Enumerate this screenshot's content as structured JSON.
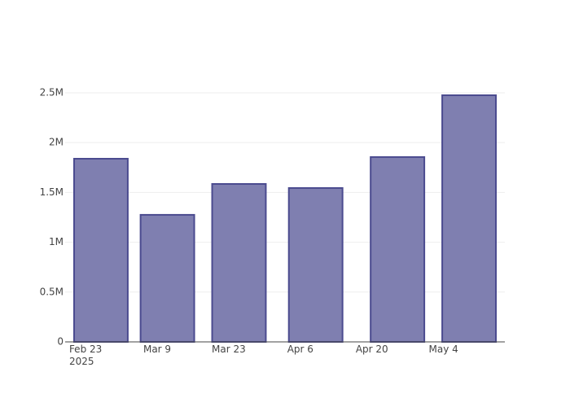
{
  "chart_data": {
    "type": "bar",
    "x": [
      "2025-02-26",
      "2025-03-11",
      "2025-03-25",
      "2025-04-09",
      "2025-04-25",
      "2025-05-09"
    ],
    "values": [
      1838000,
      1275000,
      1585000,
      1544000,
      1855000,
      2475000
    ],
    "color": "#7f7fb0",
    "edge_color": "#4b4b8f",
    "xlim": [
      "2025-02-19",
      "2025-05-16"
    ],
    "xticks": [
      {
        "value": "2025-02-23",
        "label": "Feb 23\n2025"
      },
      {
        "value": "2025-03-09",
        "label": "Mar 9"
      },
      {
        "value": "2025-03-23",
        "label": "Mar 23"
      },
      {
        "value": "2025-04-06",
        "label": "Apr 6"
      },
      {
        "value": "2025-04-20",
        "label": "Apr 20"
      },
      {
        "value": "2025-05-04",
        "label": "May 4"
      }
    ],
    "ylim": [
      0,
      2614000
    ],
    "yticks": [
      0,
      {
        "value": 500000,
        "label": "0.5M"
      },
      {
        "value": 1000000,
        "label": "1M"
      },
      {
        "value": 1500000,
        "label": "1.5M"
      },
      {
        "value": 2000000,
        "label": "2M"
      },
      {
        "value": 2500000,
        "label": "2.5M"
      }
    ],
    "grid": true
  }
}
